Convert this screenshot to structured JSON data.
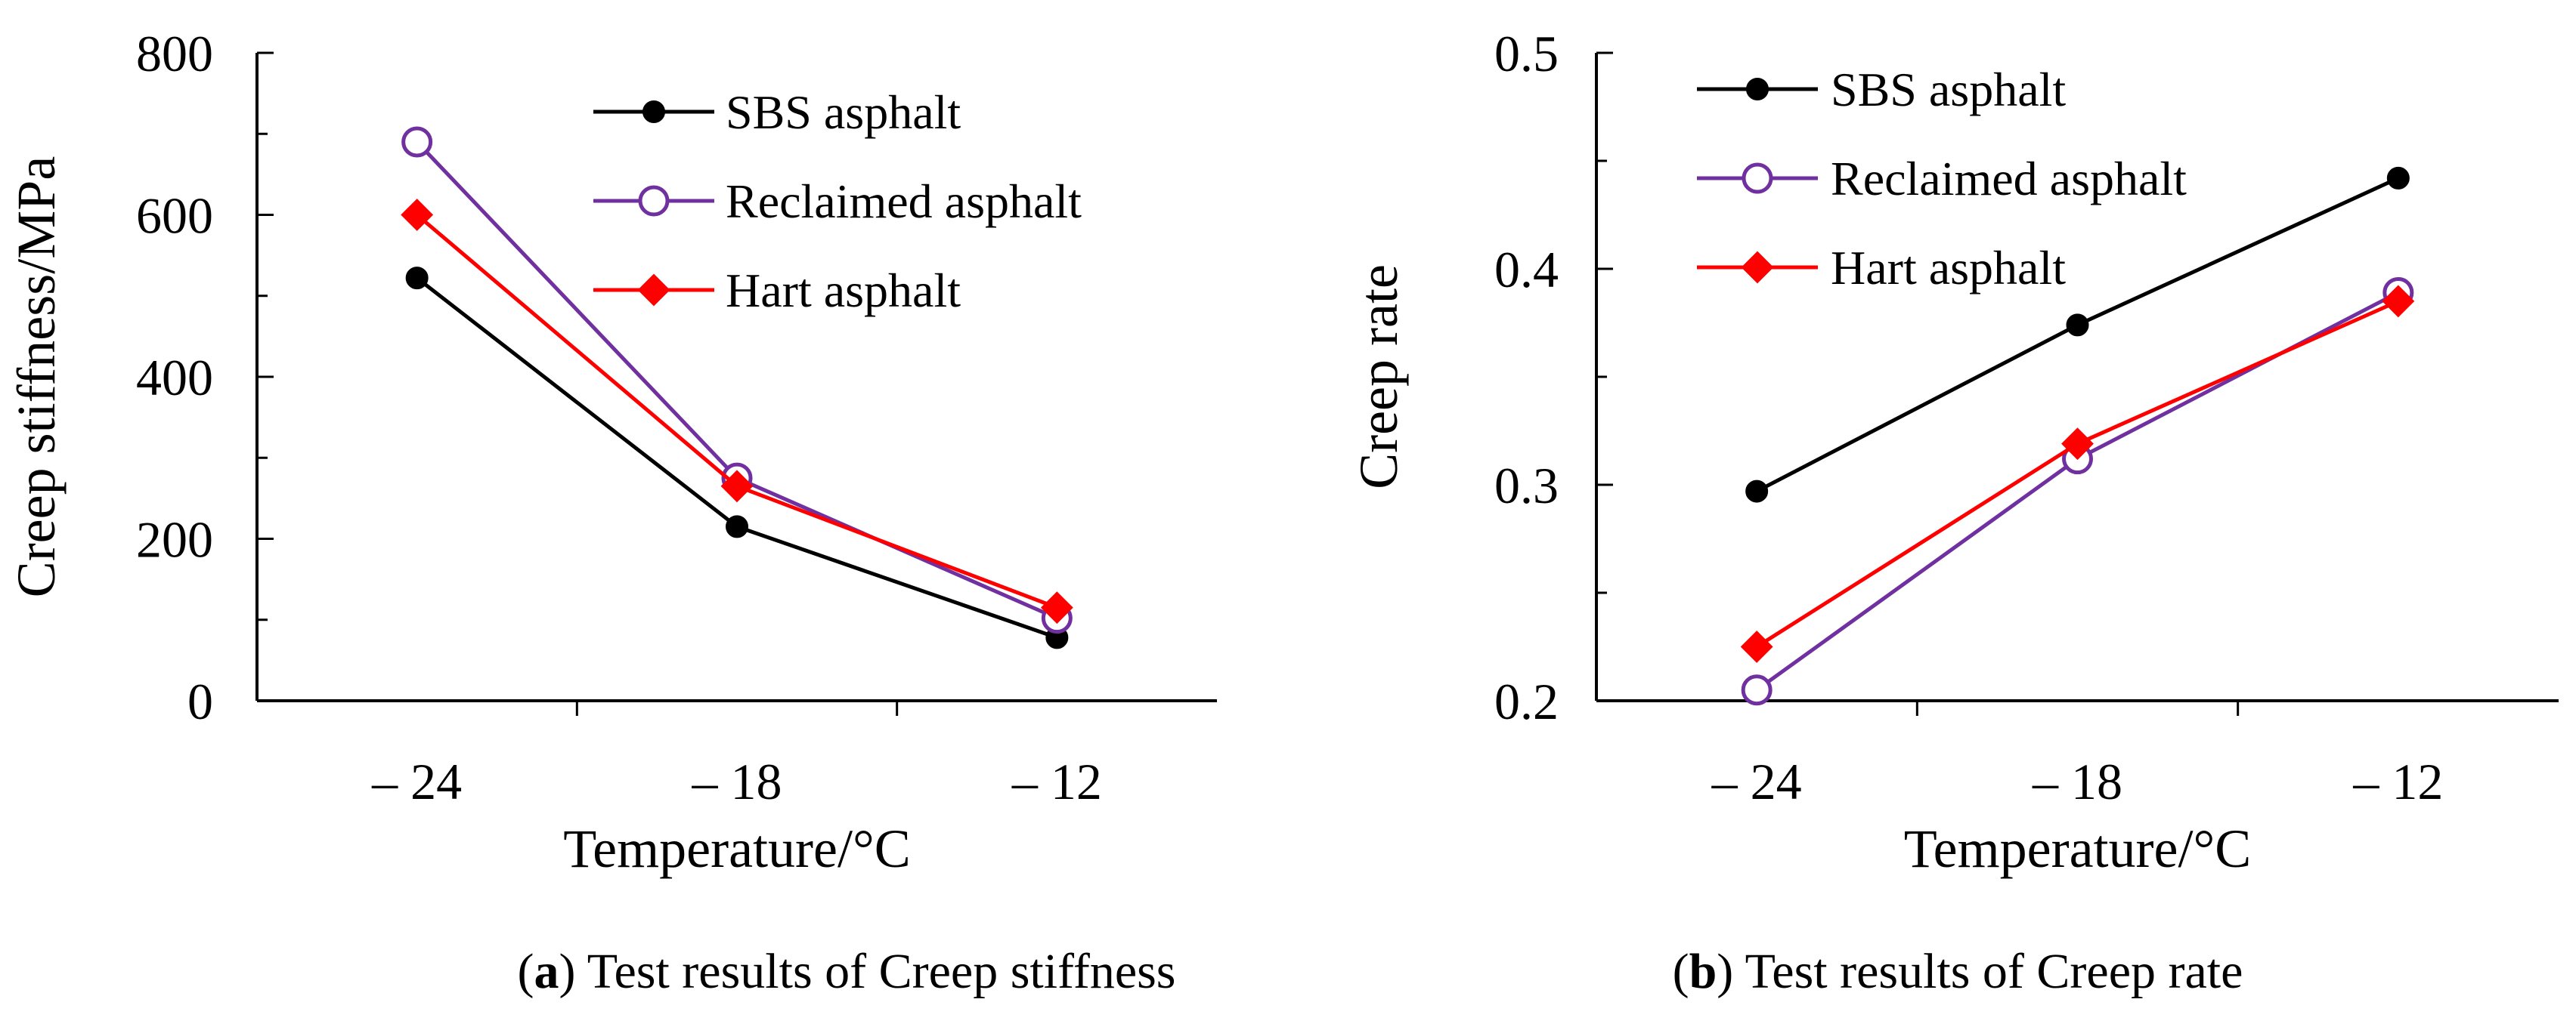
{
  "colors": {
    "SBS asphalt": "#000000",
    "Reclaimed asphalt": "#7030A0",
    "Hart asphalt": "#FF0000"
  },
  "markers": {
    "SBS asphalt": "filled-circle",
    "Reclaimed asphalt": "open-circle",
    "Hart asphalt": "filled-diamond"
  },
  "chart_data": [
    {
      "id": "a",
      "type": "line",
      "caption_letter": "a",
      "caption_text": ") Test results of Creep stiffness",
      "caption_open": "(",
      "xlabel": "Temperature/°C",
      "ylabel": "Creep stiffness/MPa",
      "categories": [
        "– 24",
        "– 18",
        "– 12"
      ],
      "ylim": [
        0,
        800
      ],
      "yticks": [
        0,
        200,
        400,
        600,
        800
      ],
      "ytick_labels": [
        "0",
        "200",
        "400",
        "600",
        "800"
      ],
      "minor_step": 100,
      "legend_position": "top-right",
      "series": [
        {
          "name": "SBS asphalt",
          "values": [
            522,
            215,
            78
          ]
        },
        {
          "name": "Reclaimed asphalt",
          "values": [
            690,
            275,
            102
          ]
        },
        {
          "name": "Hart asphalt",
          "values": [
            600,
            265,
            115
          ]
        }
      ]
    },
    {
      "id": "b",
      "type": "line",
      "caption_letter": "b",
      "caption_text": ") Test results of Creep rate",
      "caption_open": "(",
      "xlabel": "Temperature/°C",
      "ylabel": "Creep rate",
      "categories": [
        "– 24",
        "– 18",
        "– 12"
      ],
      "ylim": [
        0.2,
        0.5
      ],
      "yticks": [
        0.2,
        0.3,
        0.4,
        0.5
      ],
      "ytick_labels": [
        "0.2",
        "0.3",
        "0.4",
        "0.5"
      ],
      "minor_step": 0.05,
      "legend_position": "top-left",
      "series": [
        {
          "name": "SBS asphalt",
          "values": [
            0.297,
            0.374,
            0.442
          ]
        },
        {
          "name": "Reclaimed asphalt",
          "values": [
            0.205,
            0.312,
            0.389
          ]
        },
        {
          "name": "Hart asphalt",
          "values": [
            0.225,
            0.319,
            0.385
          ]
        }
      ]
    }
  ]
}
